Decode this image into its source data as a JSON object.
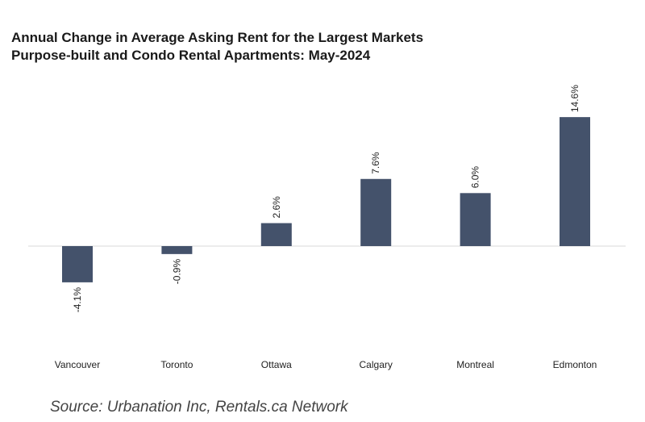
{
  "chart_data": {
    "type": "bar",
    "title": "Annual Change in Average Asking Rent for the Largest Markets",
    "subtitle": "Purpose-built and Condo Rental Apartments: May-2024",
    "categories": [
      "Vancouver",
      "Toronto",
      "Ottawa",
      "Calgary",
      "Montreal",
      "Edmonton"
    ],
    "values": [
      -4.1,
      -0.9,
      2.6,
      7.6,
      6.0,
      14.6
    ],
    "data_labels": [
      "-4.1%",
      "-0.9%",
      "2.6%",
      "7.6%",
      "6.0%",
      "14.6%"
    ],
    "bar_color": "#44526b",
    "axis_color": "#d9d9d9",
    "grid": false,
    "legend": "none",
    "xlabel": "",
    "ylabel": ""
  },
  "source": "Source: Urbanation Inc, Rentals.ca Network"
}
